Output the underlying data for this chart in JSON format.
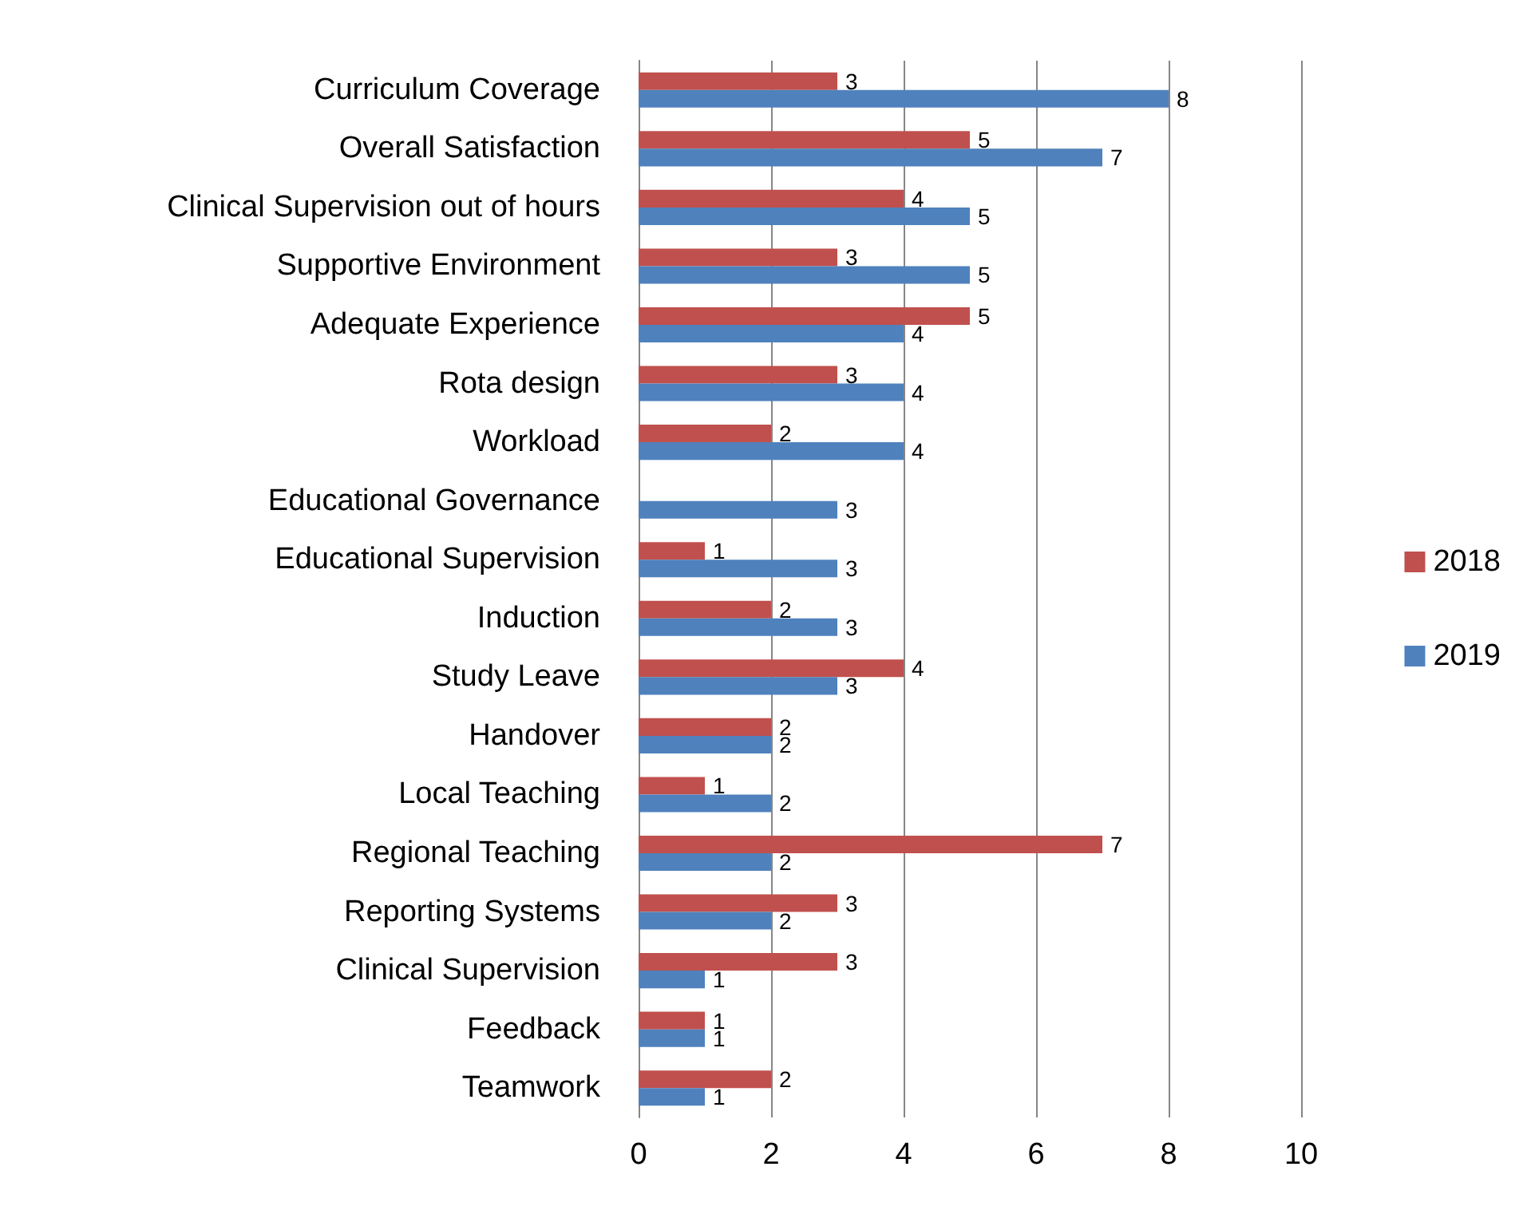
{
  "chart_data": {
    "type": "bar",
    "orientation": "horizontal",
    "categories": [
      "Curriculum Coverage",
      "Overall Satisfaction",
      "Clinical Supervision out of hours",
      "Supportive Environment",
      "Adequate Experience",
      "Rota design",
      "Workload",
      "Educational Governance",
      "Educational Supervision",
      "Induction",
      "Study Leave",
      "Handover",
      "Local Teaching",
      "Regional Teaching",
      "Reporting Systems",
      "Clinical Supervision",
      "Feedback",
      "Teamwork"
    ],
    "series": [
      {
        "name": "2018",
        "color": "#c0504d",
        "values": [
          3,
          5,
          4,
          3,
          5,
          3,
          2,
          null,
          1,
          2,
          4,
          2,
          1,
          7,
          3,
          3,
          1,
          2
        ]
      },
      {
        "name": "2019",
        "color": "#4f81bd",
        "values": [
          8,
          7,
          5,
          5,
          4,
          4,
          4,
          3,
          3,
          3,
          3,
          2,
          2,
          2,
          2,
          1,
          1,
          1
        ]
      }
    ],
    "xlim": [
      0,
      10
    ],
    "xticks": [
      0,
      2,
      4,
      6,
      8,
      10
    ],
    "grid": "x",
    "legend": "right",
    "data_labels": true
  }
}
